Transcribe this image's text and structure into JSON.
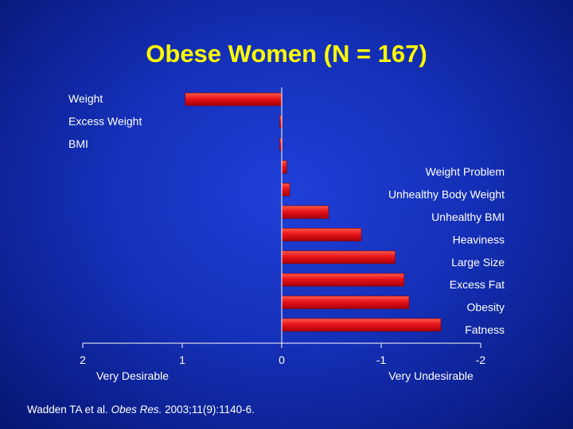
{
  "slide": {
    "title": "Obese Women (N = 167)"
  },
  "chart_data": {
    "type": "bar",
    "orientation": "horizontal",
    "title": "Obese Women (N = 167)",
    "categories": [
      "Weight",
      "Excess Weight",
      "BMI",
      "Weight Problem",
      "Unhealthy Body Weight",
      "Unhealthy BMI",
      "Heaviness",
      "Large Size",
      "Excess Fat",
      "Obesity",
      "Fatness"
    ],
    "values": [
      0.97,
      0.02,
      0.02,
      -0.05,
      -0.08,
      -0.47,
      -0.8,
      -1.14,
      -1.23,
      -1.28,
      -1.6
    ],
    "xlim": [
      2,
      -2
    ],
    "xticks": [
      {
        "value": 2,
        "label": "2"
      },
      {
        "value": 1,
        "label": "1"
      },
      {
        "value": 0,
        "label": "0"
      },
      {
        "value": -1,
        "label": "-1"
      },
      {
        "value": -2,
        "label": "-2"
      }
    ],
    "axis_labels": {
      "left": "Very Desirable",
      "right": "Very Undesirable"
    },
    "bar_color": "#e8141a"
  },
  "citation": {
    "authors": "Wadden TA et al. ",
    "journal": "Obes Res.",
    "details": " 2003;11(9):1140-6."
  }
}
